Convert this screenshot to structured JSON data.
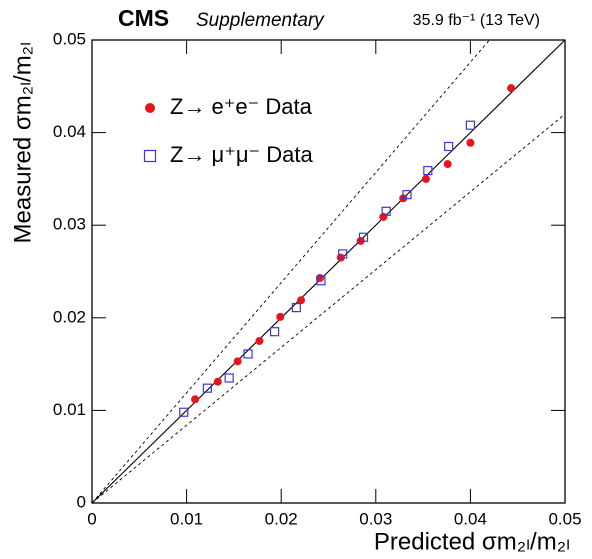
{
  "chart_data": {
    "type": "scatter",
    "title": "CMS",
    "subtitle": "Supplementary",
    "annotation": "35.9 fb⁻¹ (13 TeV)",
    "x_label": "Predicted σm₂ₗ/m₂ₗ",
    "y_label": "Measured σm₂ₗ/m₂ₗ",
    "xlim": [
      0,
      0.05
    ],
    "ylim": [
      0,
      0.05
    ],
    "xticks": [
      0,
      0.01,
      0.02,
      0.03,
      0.04,
      0.05
    ],
    "yticks": [
      0,
      0.01,
      0.02,
      0.03,
      0.04,
      0.05
    ],
    "legend": "top-left",
    "reference_lines": [
      {
        "slope": 1,
        "style": "solid"
      },
      {
        "slope": 1.19,
        "style": "dashed"
      },
      {
        "slope": 0.84,
        "style": "dashed"
      }
    ],
    "series": [
      {
        "name": "Z→ e⁺e⁻ Data",
        "color": "#e8141a",
        "marker": "circle",
        "x": [
          0.0109,
          0.0133,
          0.0154,
          0.0177,
          0.0199,
          0.0221,
          0.0241,
          0.0263,
          0.0284,
          0.0308,
          0.0329,
          0.0353,
          0.0376,
          0.04,
          0.0443
        ],
        "values": [
          0.0112,
          0.0131,
          0.0153,
          0.0175,
          0.0201,
          0.0219,
          0.0243,
          0.0265,
          0.0283,
          0.0309,
          0.0329,
          0.035,
          0.0366,
          0.0389,
          0.0448
        ]
      },
      {
        "name": "Z→ μ⁺μ⁻ Data",
        "color": "#3a3ad0",
        "marker": "open-square",
        "x": [
          0.0097,
          0.0122,
          0.0145,
          0.0165,
          0.0193,
          0.0216,
          0.0242,
          0.0265,
          0.0287,
          0.0311,
          0.0333,
          0.0355,
          0.0377,
          0.04
        ],
        "values": [
          0.0098,
          0.0124,
          0.0135,
          0.0161,
          0.0185,
          0.0211,
          0.024,
          0.0269,
          0.0287,
          0.0315,
          0.0333,
          0.0359,
          0.0385,
          0.0408
        ]
      }
    ]
  }
}
